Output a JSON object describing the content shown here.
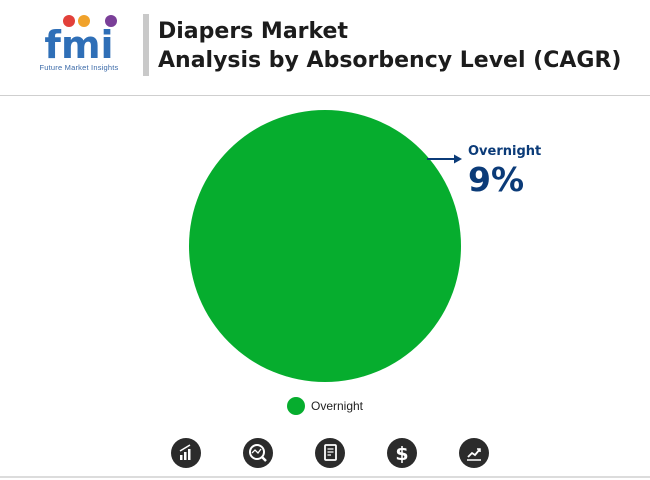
{
  "header": {
    "title_line1": "Diapers Market",
    "title_line2": "Analysis by Absorbency Level (CAGR)",
    "logo_text": "fmi",
    "logo_tagline": "Future Market Insights"
  },
  "chart_data": {
    "type": "pie",
    "categories": [
      "Overnight"
    ],
    "values": [
      100
    ],
    "colors": [
      "#06ad2e"
    ],
    "annotations": [
      {
        "category": "Overnight",
        "label": "Overnight",
        "value": "9%"
      }
    ],
    "legend": [
      "Overnight"
    ],
    "legend_position": "bottom"
  },
  "footer_icons": [
    "bar-chart-icon",
    "magnifier-chart-icon",
    "document-icon",
    "dollar-icon",
    "trend-chart-icon"
  ],
  "colors": {
    "accent": "#0b3b78",
    "slice": "#06ad2e",
    "logo_blue": "#2f6fb7"
  }
}
